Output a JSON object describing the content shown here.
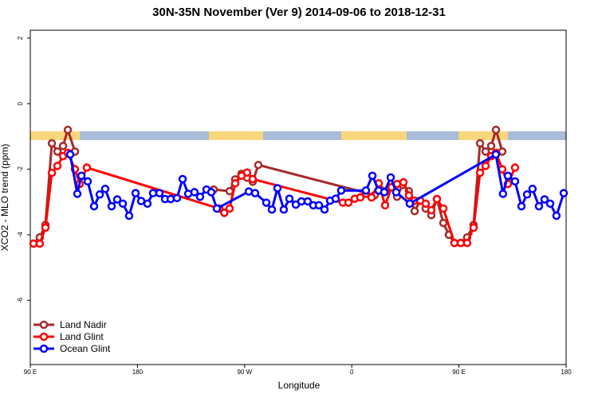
{
  "chart_data": {
    "type": "line",
    "title": "30N-35N November (Ver 9)   2014-09-06 to 2018-12-31",
    "xlabel": "Longitude",
    "ylabel": "XCO2 - MLO trend (ppm)",
    "xlim": [
      90,
      540
    ],
    "ylim": [
      -7.96,
      2.24
    ],
    "xticks": [
      {
        "value": 90,
        "label": "90 E"
      },
      180,
      {
        "value": 270,
        "label": "90 W"
      },
      {
        "value": 360,
        "label": "0"
      },
      {
        "value": 450,
        "label": "90 E"
      },
      {
        "value": 540,
        "label": "180"
      }
    ],
    "yticks": [
      2,
      0,
      -2,
      -4,
      -6
    ],
    "legend": "bottom-left",
    "series": [
      {
        "name": "Land Nadir",
        "color": "#a52a2a",
        "x": [
          92.7,
          98,
          102.7,
          108.1,
          112.8,
          117.5,
          121.5,
          127.5,
          131.5,
          244,
          257.4,
          262.1,
          267.4,
          272.1,
          276.8,
          281.5,
          379.3,
          384,
          388.7,
          393.4,
          398,
          402.7,
          408,
          412.8,
          417.5,
          422.1,
          426.8,
          431.5,
          436.9,
          441.5,
          446.2,
          451.6,
          456.9,
          462.3,
          467.7,
          472.4,
          477.1,
          481.1,
          486.4,
          491.1
        ],
        "values": [
          -4.27,
          -4.08,
          -3.7,
          -1.21,
          -1.46,
          -1.29,
          -0.8,
          -1.46,
          null,
          -2.62,
          -2.67,
          -2.31,
          -2.14,
          -2.26,
          -2.38,
          -1.87,
          -2.79,
          -2.62,
          -2.67,
          -2.55,
          -2.84,
          -2.48,
          -2.67,
          -3.28,
          -2.96,
          -3.2,
          -3.4,
          -2.91,
          -3.64,
          -4.0,
          -4.25,
          -4.25,
          -4.08,
          -3.7,
          -1.21,
          -1.46,
          -1.29,
          -0.8,
          -1.46,
          null
        ]
      },
      {
        "name": "Land Glint",
        "color": "#ff0000",
        "x": [
          92.7,
          98,
          102.7,
          108.1,
          112.8,
          117.5,
          121.5,
          127.5,
          131.5,
          137.5,
          248.7,
          252.9,
          257.4,
          262.1,
          267.4,
          272.1,
          276.8,
          352.5,
          357.2,
          362.5,
          367.2,
          371.9,
          376.6,
          382.6,
          388,
          393.4,
          398,
          403.4,
          408,
          412.8,
          417.5,
          422.1,
          426.8,
          431.5,
          436.9,
          446.2,
          451.6,
          456.9,
          462.3,
          467.7,
          472.4,
          477.1,
          481.1,
          486.4,
          491.1,
          497.1
        ],
        "values": [
          -4.27,
          -4.27,
          -3.78,
          -2.11,
          -1.9,
          -1.6,
          -1.5,
          -2.0,
          -2.45,
          -1.95,
          -3.2,
          -3.33,
          -3.2,
          -2.43,
          -2.2,
          -2.1,
          -2.3,
          -3.02,
          -3.02,
          -2.9,
          -2.86,
          -2.75,
          -2.86,
          -2.43,
          -3.1,
          -2.55,
          -2.45,
          -2.4,
          -2.8,
          -2.96,
          -2.96,
          -3.05,
          -3.25,
          -2.91,
          -3.2,
          -4.25,
          -4.25,
          -4.25,
          -3.78,
          -2.11,
          -1.9,
          -1.6,
          -1.5,
          -2.0,
          -2.45,
          -1.95
        ]
      },
      {
        "name": "Ocean Glint",
        "color": "#0000ff",
        "x": [
          123.5,
          129.5,
          132.9,
          138.2,
          143.6,
          148.3,
          152.9,
          158.3,
          163,
          167.7,
          173,
          178.4,
          183.1,
          188.4,
          193.1,
          198.5,
          203.2,
          207.9,
          213.2,
          217.9,
          222.6,
          227.9,
          232.6,
          238,
          242,
          246.7,
          273.5,
          278.8,
          288.2,
          292.9,
          297.6,
          302.9,
          307.6,
          313,
          317.7,
          323,
          327.7,
          332.4,
          337.1,
          341.8,
          346.5,
          351.1,
          371.9,
          377.3,
          382.6,
          387.3,
          392.7,
          397.3,
          408.7,
          481,
          487,
          491.1,
          497.1,
          502.5,
          507.2,
          511.8,
          517.2,
          521.9,
          526.6,
          531.9,
          538
        ],
        "values": [
          -1.55,
          -2.75,
          -2.2,
          -2.37,
          -3.13,
          -2.77,
          -2.6,
          -3.13,
          -2.92,
          -3.05,
          -3.42,
          -2.73,
          -2.97,
          -3.05,
          -2.73,
          -2.73,
          -2.91,
          -2.91,
          -2.88,
          -2.3,
          -2.75,
          -2.7,
          -2.84,
          -2.62,
          -2.7,
          -3.2,
          -2.68,
          -2.73,
          -3.02,
          -3.23,
          -2.58,
          -3.23,
          -2.9,
          -3.08,
          -2.98,
          -2.98,
          -3.1,
          -3.1,
          -3.23,
          -2.96,
          -2.9,
          -2.65,
          -2.65,
          -2.2,
          -2.65,
          -2.7,
          -2.25,
          -2.7,
          -3.05,
          -1.55,
          -2.75,
          -2.2,
          -2.37,
          -3.13,
          -2.77,
          -2.6,
          -3.13,
          -2.92,
          -3.05,
          -3.42,
          -2.73
        ]
      }
    ]
  }
}
